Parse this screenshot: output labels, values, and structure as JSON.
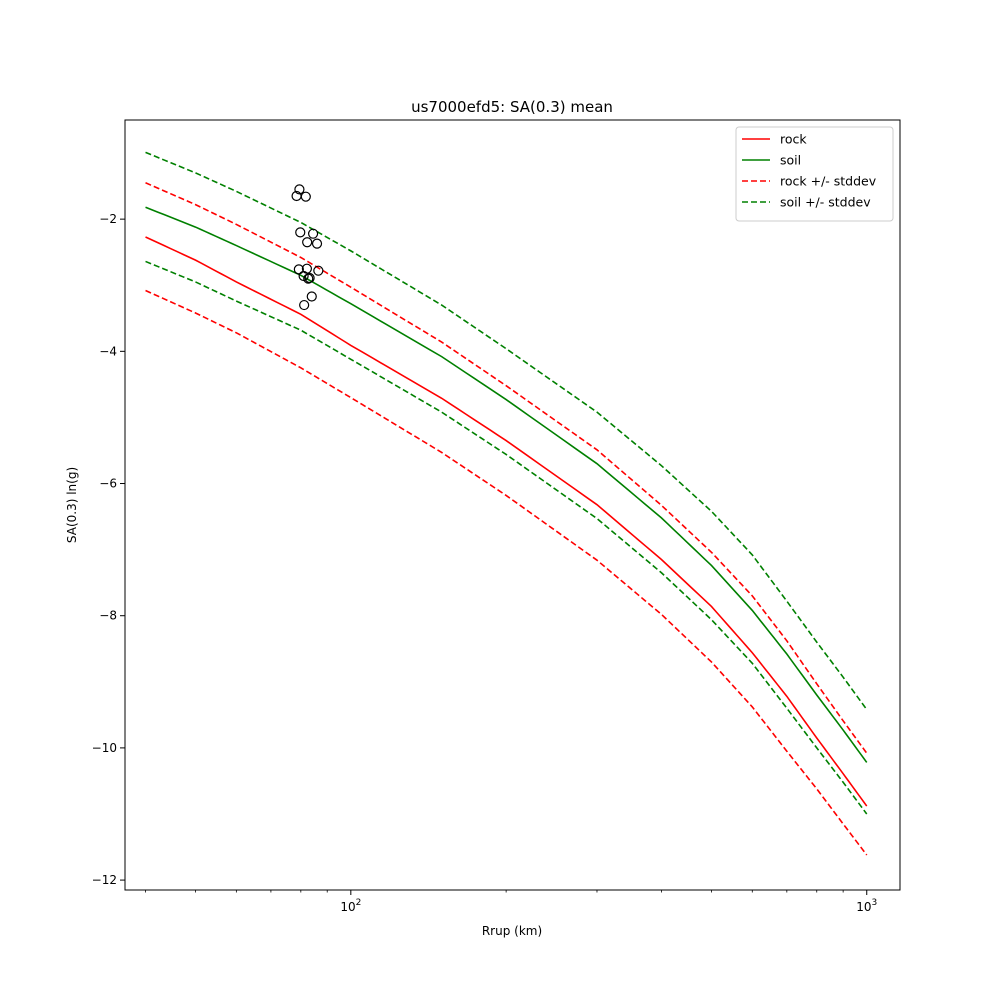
{
  "chart_data": {
    "type": "line",
    "title": "us7000efd5: SA(0.3) mean",
    "xlabel": "Rrup (km)",
    "ylabel": "SA(0.3) ln(g)",
    "xscale": "log",
    "xlim": [
      36.5,
      1160
    ],
    "ylim": [
      -12.15,
      -0.5
    ],
    "x_ticks": [
      {
        "value": 100,
        "base": "10",
        "exp": "2"
      },
      {
        "value": 1000,
        "base": "10",
        "exp": "3"
      }
    ],
    "y_ticks": [
      -12,
      -10,
      -8,
      -6,
      -4,
      -2
    ],
    "y_tick_labels": [
      "−12",
      "−10",
      "−8",
      "−6",
      "−4",
      "−2"
    ],
    "legend_position": "top-right",
    "grid": false,
    "series": [
      {
        "name": "rock",
        "color": "#ff0000",
        "dash": "solid",
        "points": [
          [
            40,
            -2.27
          ],
          [
            50,
            -2.62
          ],
          [
            60,
            -2.95
          ],
          [
            80,
            -3.44
          ],
          [
            100,
            -3.91
          ],
          [
            150,
            -4.71
          ],
          [
            200,
            -5.35
          ],
          [
            300,
            -6.32
          ],
          [
            400,
            -7.15
          ],
          [
            500,
            -7.86
          ],
          [
            600,
            -8.56
          ],
          [
            700,
            -9.22
          ],
          [
            800,
            -9.85
          ],
          [
            900,
            -10.39
          ],
          [
            1000,
            -10.88
          ]
        ]
      },
      {
        "name": "soil",
        "color": "#008000",
        "dash": "solid",
        "points": [
          [
            40,
            -1.82
          ],
          [
            50,
            -2.12
          ],
          [
            60,
            -2.4
          ],
          [
            80,
            -2.85
          ],
          [
            100,
            -3.28
          ],
          [
            150,
            -4.08
          ],
          [
            200,
            -4.73
          ],
          [
            300,
            -5.7
          ],
          [
            400,
            -6.52
          ],
          [
            500,
            -7.24
          ],
          [
            600,
            -7.92
          ],
          [
            700,
            -8.58
          ],
          [
            800,
            -9.2
          ],
          [
            900,
            -9.73
          ],
          [
            1000,
            -10.22
          ]
        ]
      },
      {
        "name": "rock +/- stddev",
        "color": "#ff0000",
        "dash": "dashed",
        "points": [
          [
            40,
            -1.45
          ],
          [
            50,
            -1.78
          ],
          [
            60,
            -2.08
          ],
          [
            80,
            -2.58
          ],
          [
            100,
            -3.03
          ],
          [
            150,
            -3.86
          ],
          [
            200,
            -4.52
          ],
          [
            300,
            -5.49
          ],
          [
            400,
            -6.33
          ],
          [
            500,
            -7.04
          ],
          [
            600,
            -7.7
          ],
          [
            700,
            -8.38
          ],
          [
            800,
            -9.03
          ],
          [
            900,
            -9.59
          ],
          [
            1000,
            -10.08
          ]
        ]
      },
      {
        "name": "",
        "color": "#ff0000",
        "dash": "dashed",
        "points": [
          [
            40,
            -3.08
          ],
          [
            50,
            -3.42
          ],
          [
            60,
            -3.72
          ],
          [
            80,
            -4.25
          ],
          [
            100,
            -4.7
          ],
          [
            150,
            -5.53
          ],
          [
            200,
            -6.18
          ],
          [
            300,
            -7.16
          ],
          [
            400,
            -7.98
          ],
          [
            500,
            -8.7
          ],
          [
            600,
            -9.38
          ],
          [
            700,
            -10.05
          ],
          [
            800,
            -10.62
          ],
          [
            900,
            -11.15
          ],
          [
            1000,
            -11.62
          ]
        ]
      },
      {
        "name": "soil +/- stddev",
        "color": "#008000",
        "dash": "dashed",
        "points": [
          [
            40,
            -0.99
          ],
          [
            50,
            -1.3
          ],
          [
            60,
            -1.58
          ],
          [
            80,
            -2.05
          ],
          [
            100,
            -2.48
          ],
          [
            150,
            -3.3
          ],
          [
            200,
            -3.96
          ],
          [
            300,
            -4.92
          ],
          [
            400,
            -5.73
          ],
          [
            500,
            -6.42
          ],
          [
            600,
            -7.08
          ],
          [
            700,
            -7.78
          ],
          [
            800,
            -8.4
          ],
          [
            900,
            -8.93
          ],
          [
            1000,
            -9.42
          ]
        ]
      },
      {
        "name": "",
        "color": "#008000",
        "dash": "dashed",
        "points": [
          [
            40,
            -2.64
          ],
          [
            50,
            -2.95
          ],
          [
            60,
            -3.24
          ],
          [
            80,
            -3.68
          ],
          [
            100,
            -4.12
          ],
          [
            150,
            -4.92
          ],
          [
            200,
            -5.56
          ],
          [
            300,
            -6.53
          ],
          [
            400,
            -7.35
          ],
          [
            500,
            -8.06
          ],
          [
            600,
            -8.72
          ],
          [
            700,
            -9.4
          ],
          [
            800,
            -10.0
          ],
          [
            900,
            -10.52
          ],
          [
            1000,
            -11.0
          ]
        ]
      }
    ],
    "scatter": {
      "name": "observations",
      "marker": "open-circle",
      "points": [
        [
          79.5,
          -1.55
        ],
        [
          78.5,
          -1.65
        ],
        [
          81.8,
          -1.66
        ],
        [
          79.8,
          -2.2
        ],
        [
          84.5,
          -2.22
        ],
        [
          82.3,
          -2.35
        ],
        [
          86.0,
          -2.37
        ],
        [
          79.3,
          -2.76
        ],
        [
          82.2,
          -2.75
        ],
        [
          86.5,
          -2.78
        ],
        [
          81.0,
          -2.86
        ],
        [
          83.2,
          -2.89
        ],
        [
          82.7,
          -2.9
        ],
        [
          84.0,
          -3.17
        ],
        [
          81.2,
          -3.3
        ]
      ]
    }
  }
}
